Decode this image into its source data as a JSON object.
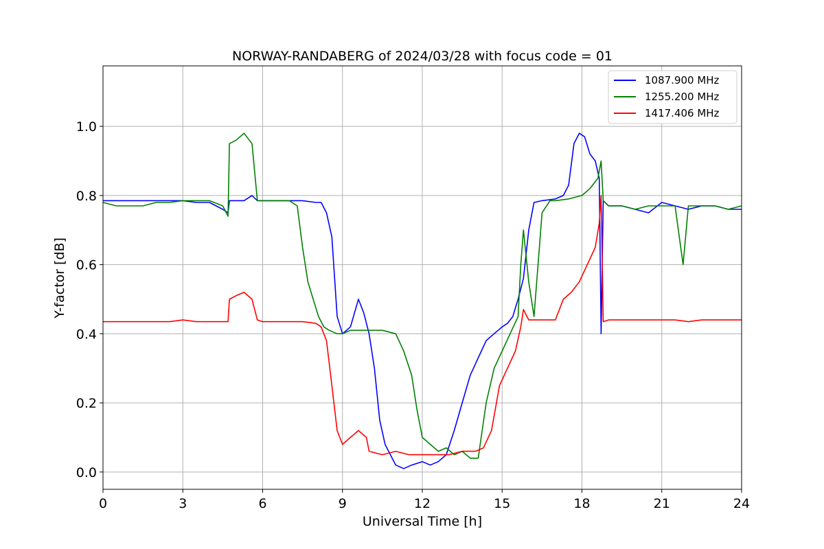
{
  "chart_data": {
    "type": "line",
    "title": "NORWAY-RANDABERG of 2024/03/28 with focus code = 01",
    "xlabel": "Universal Time [h]",
    "ylabel": "Y-factor [dB]",
    "xlim": [
      0,
      24
    ],
    "ylim": [
      -0.05,
      1.175
    ],
    "xticks": [
      0,
      3,
      6,
      9,
      12,
      15,
      18,
      21,
      24
    ],
    "xtick_labels": [
      "0",
      "3",
      "6",
      "9",
      "12",
      "15",
      "18",
      "21",
      "24"
    ],
    "yticks": [
      0.0,
      0.2,
      0.4,
      0.6,
      0.8,
      1.0
    ],
    "ytick_labels": [
      "0.0",
      "0.2",
      "0.4",
      "0.6",
      "0.8",
      "1.0"
    ],
    "grid": true,
    "legend_position": "top-right",
    "series": [
      {
        "name": "1087.900 MHz",
        "color": "#0000ff",
        "x": [
          0,
          0.5,
          1,
          1.5,
          2,
          2.5,
          3,
          3.5,
          4,
          4.5,
          4.7,
          4.75,
          5,
          5.3,
          5.6,
          5.8,
          6,
          6.5,
          7,
          7.5,
          8,
          8.2,
          8.4,
          8.6,
          8.8,
          9,
          9.3,
          9.6,
          9.8,
          10,
          10.2,
          10.4,
          10.6,
          10.8,
          11,
          11.3,
          11.6,
          12,
          12.3,
          12.6,
          12.9,
          13.2,
          13.5,
          13.8,
          14.1,
          14.4,
          14.7,
          15,
          15.2,
          15.4,
          15.6,
          15.8,
          16,
          16.2,
          16.5,
          17,
          17.3,
          17.5,
          17.7,
          17.9,
          18.1,
          18.3,
          18.5,
          18.65,
          18.72,
          18.8,
          19,
          19.5,
          20,
          20.5,
          21,
          21.5,
          22,
          22.5,
          23,
          23.5,
          24
        ],
        "values": [
          0.785,
          0.785,
          0.785,
          0.785,
          0.785,
          0.785,
          0.785,
          0.78,
          0.78,
          0.76,
          0.75,
          0.785,
          0.785,
          0.785,
          0.8,
          0.785,
          0.785,
          0.785,
          0.785,
          0.785,
          0.78,
          0.78,
          0.75,
          0.68,
          0.45,
          0.4,
          0.42,
          0.5,
          0.46,
          0.4,
          0.3,
          0.15,
          0.08,
          0.05,
          0.02,
          0.01,
          0.02,
          0.03,
          0.02,
          0.03,
          0.05,
          0.12,
          0.2,
          0.28,
          0.33,
          0.38,
          0.4,
          0.42,
          0.43,
          0.45,
          0.5,
          0.56,
          0.7,
          0.78,
          0.785,
          0.79,
          0.8,
          0.83,
          0.95,
          0.98,
          0.97,
          0.92,
          0.9,
          0.85,
          0.4,
          0.785,
          0.77,
          0.77,
          0.76,
          0.75,
          0.78,
          0.77,
          0.76,
          0.77,
          0.77,
          0.76,
          0.76
        ]
      },
      {
        "name": "1255.200 MHz",
        "color": "#008000",
        "x": [
          0,
          0.5,
          1,
          1.5,
          2,
          2.5,
          3,
          3.5,
          4,
          4.5,
          4.7,
          4.75,
          5,
          5.3,
          5.6,
          5.8,
          6,
          6.5,
          7,
          7.3,
          7.5,
          7.7,
          7.9,
          8.1,
          8.3,
          8.5,
          8.8,
          9,
          9.3,
          9.6,
          10,
          10.5,
          11,
          11.3,
          11.6,
          11.8,
          12,
          12.3,
          12.6,
          12.9,
          13.2,
          13.5,
          13.8,
          14.1,
          14.4,
          14.7,
          15,
          15.3,
          15.6,
          15.7,
          15.8,
          16,
          16.2,
          16.5,
          16.8,
          17,
          17.5,
          18,
          18.3,
          18.6,
          18.72,
          18.8,
          19,
          19.5,
          20,
          20.5,
          21,
          21.5,
          21.8,
          22,
          22.5,
          23,
          23.5,
          24
        ],
        "values": [
          0.78,
          0.77,
          0.77,
          0.77,
          0.78,
          0.78,
          0.785,
          0.785,
          0.785,
          0.77,
          0.74,
          0.95,
          0.96,
          0.98,
          0.95,
          0.785,
          0.785,
          0.785,
          0.785,
          0.77,
          0.65,
          0.55,
          0.5,
          0.45,
          0.42,
          0.41,
          0.4,
          0.4,
          0.41,
          0.41,
          0.41,
          0.41,
          0.4,
          0.35,
          0.28,
          0.18,
          0.1,
          0.08,
          0.06,
          0.07,
          0.05,
          0.06,
          0.04,
          0.04,
          0.2,
          0.3,
          0.35,
          0.4,
          0.45,
          0.6,
          0.7,
          0.55,
          0.45,
          0.75,
          0.785,
          0.785,
          0.79,
          0.8,
          0.82,
          0.85,
          0.9,
          0.785,
          0.77,
          0.77,
          0.76,
          0.77,
          0.77,
          0.77,
          0.6,
          0.77,
          0.77,
          0.77,
          0.76,
          0.77
        ]
      },
      {
        "name": "1417.406 MHz",
        "color": "#ff0000",
        "x": [
          0,
          0.5,
          1,
          1.5,
          2,
          2.5,
          3,
          3.5,
          4,
          4.5,
          4.7,
          4.75,
          5,
          5.3,
          5.6,
          5.8,
          6,
          6.5,
          7,
          7.5,
          8,
          8.2,
          8.4,
          8.6,
          8.8,
          9,
          9.3,
          9.6,
          9.9,
          10,
          10.5,
          11,
          11.5,
          12,
          12.5,
          13,
          13.5,
          14,
          14.3,
          14.6,
          14.9,
          15.2,
          15.5,
          15.7,
          15.8,
          16,
          16.5,
          17,
          17.3,
          17.6,
          17.9,
          18.2,
          18.5,
          18.65,
          18.72,
          18.8,
          19,
          19.5,
          20,
          20.5,
          21,
          21.5,
          22,
          22.5,
          23,
          23.5,
          24
        ],
        "values": [
          0.435,
          0.435,
          0.435,
          0.435,
          0.435,
          0.435,
          0.44,
          0.435,
          0.435,
          0.435,
          0.435,
          0.5,
          0.51,
          0.52,
          0.5,
          0.44,
          0.435,
          0.435,
          0.435,
          0.435,
          0.43,
          0.42,
          0.38,
          0.25,
          0.12,
          0.08,
          0.1,
          0.12,
          0.1,
          0.06,
          0.05,
          0.06,
          0.05,
          0.05,
          0.05,
          0.05,
          0.06,
          0.06,
          0.07,
          0.12,
          0.25,
          0.3,
          0.35,
          0.42,
          0.47,
          0.44,
          0.44,
          0.44,
          0.5,
          0.52,
          0.55,
          0.6,
          0.65,
          0.72,
          0.8,
          0.435,
          0.44,
          0.44,
          0.44,
          0.44,
          0.44,
          0.44,
          0.435,
          0.44,
          0.44,
          0.44,
          0.44
        ]
      }
    ]
  }
}
